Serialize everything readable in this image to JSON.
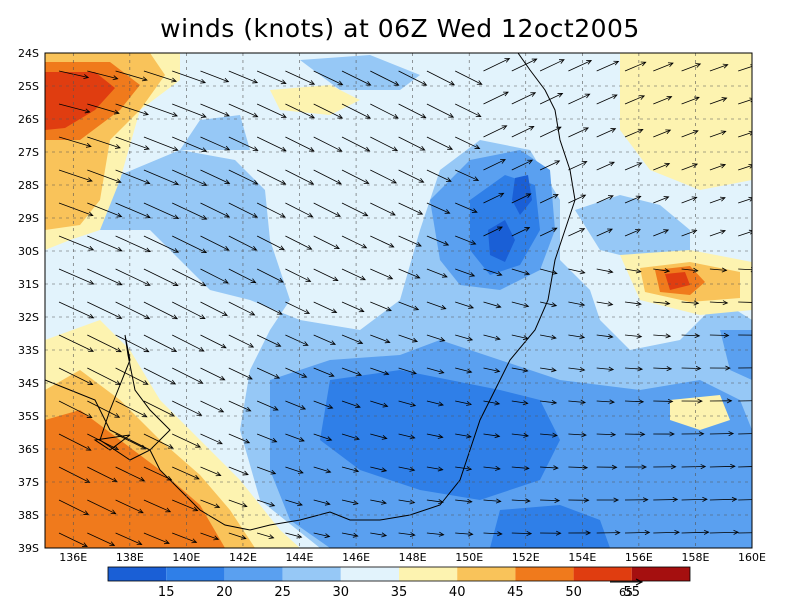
{
  "title": "winds (knots) at 06Z Wed 12oct2005",
  "lat_labels": [
    "24S",
    "25S",
    "26S",
    "27S",
    "28S",
    "29S",
    "30S",
    "31S",
    "32S",
    "33S",
    "34S",
    "35S",
    "36S",
    "37S",
    "38S",
    "39S"
  ],
  "lon_labels": [
    "136E",
    "138E",
    "140E",
    "142E",
    "144E",
    "146E",
    "148E",
    "150E",
    "152E",
    "154E",
    "156E",
    "158E",
    "160E"
  ],
  "colorbar": {
    "levels": [
      "15",
      "20",
      "25",
      "30",
      "35",
      "40",
      "45",
      "50",
      "55"
    ],
    "colors": [
      "#1a5fd6",
      "#2f7fe8",
      "#5aa0f0",
      "#96c8f6",
      "#e2f3fc",
      "#fdf3b0",
      "#f9c35a",
      "#f07a1c",
      "#e03d10",
      "#a50f0f"
    ]
  },
  "reference_vector": {
    "label": "65"
  },
  "chart_data": {
    "type": "heatmap",
    "variable": "winds (knots)",
    "time": "06Z Wed 12oct2005",
    "lon_range": [
      135,
      160
    ],
    "lat_range": [
      -39,
      -24
    ],
    "contour_levels": [
      15,
      20,
      25,
      30,
      35,
      40,
      45,
      50,
      55
    ],
    "overlay": "wind vectors",
    "features": [
      {
        "region": "136E-138E, 25S-26S",
        "speed": "50-55"
      },
      {
        "region": "SW corner 136E-141E, 35S-39S",
        "speed": "45-55"
      },
      {
        "region": "157E, 31S",
        "speed": "50"
      },
      {
        "region": "151E-152E, 28S-30S",
        "speed": "15-20"
      },
      {
        "region": "147E-153E, 33S-38S",
        "speed": "20-25"
      }
    ]
  }
}
